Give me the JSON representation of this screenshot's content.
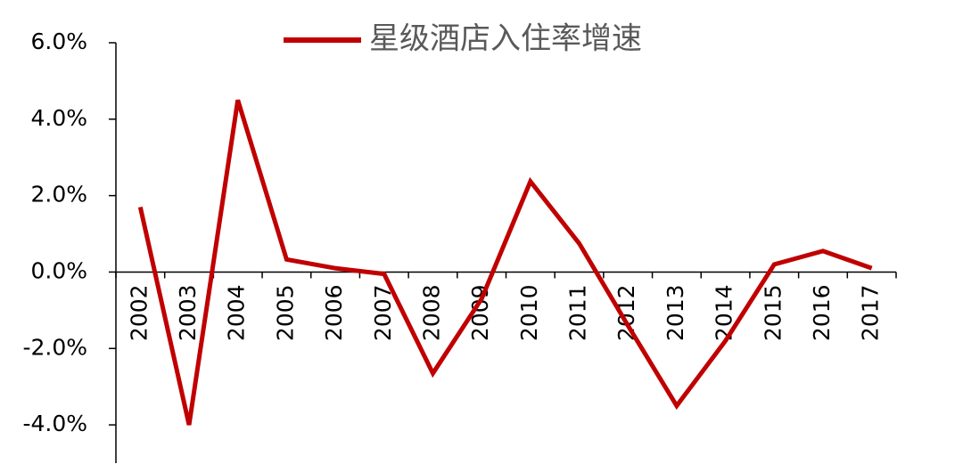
{
  "chart_data": {
    "type": "line",
    "categories": [
      "2002",
      "2003",
      "2004",
      "2005",
      "2006",
      "2007",
      "2008",
      "2009",
      "2010",
      "2011",
      "2012",
      "2013",
      "2014",
      "2015",
      "2016",
      "2017"
    ],
    "series": [
      {
        "name": "星级酒店入住率增速",
        "color": "#c00000",
        "values": [
          1.7,
          -4.0,
          4.5,
          0.33,
          0.1,
          -0.05,
          -2.65,
          -0.7,
          2.37,
          0.75,
          -1.4,
          -3.5,
          -1.8,
          0.2,
          0.55,
          0.1
        ]
      }
    ],
    "ylim": [
      -5,
      6
    ],
    "yticks": [
      {
        "value": -4,
        "label": "-4.0%"
      },
      {
        "value": -2,
        "label": "-2.0%"
      },
      {
        "value": 0,
        "label": "0.0%"
      },
      {
        "value": 2,
        "label": "2.0%"
      },
      {
        "value": 4,
        "label": "4.0%"
      },
      {
        "value": 6,
        "label": "6.0%"
      }
    ],
    "grid": false
  }
}
